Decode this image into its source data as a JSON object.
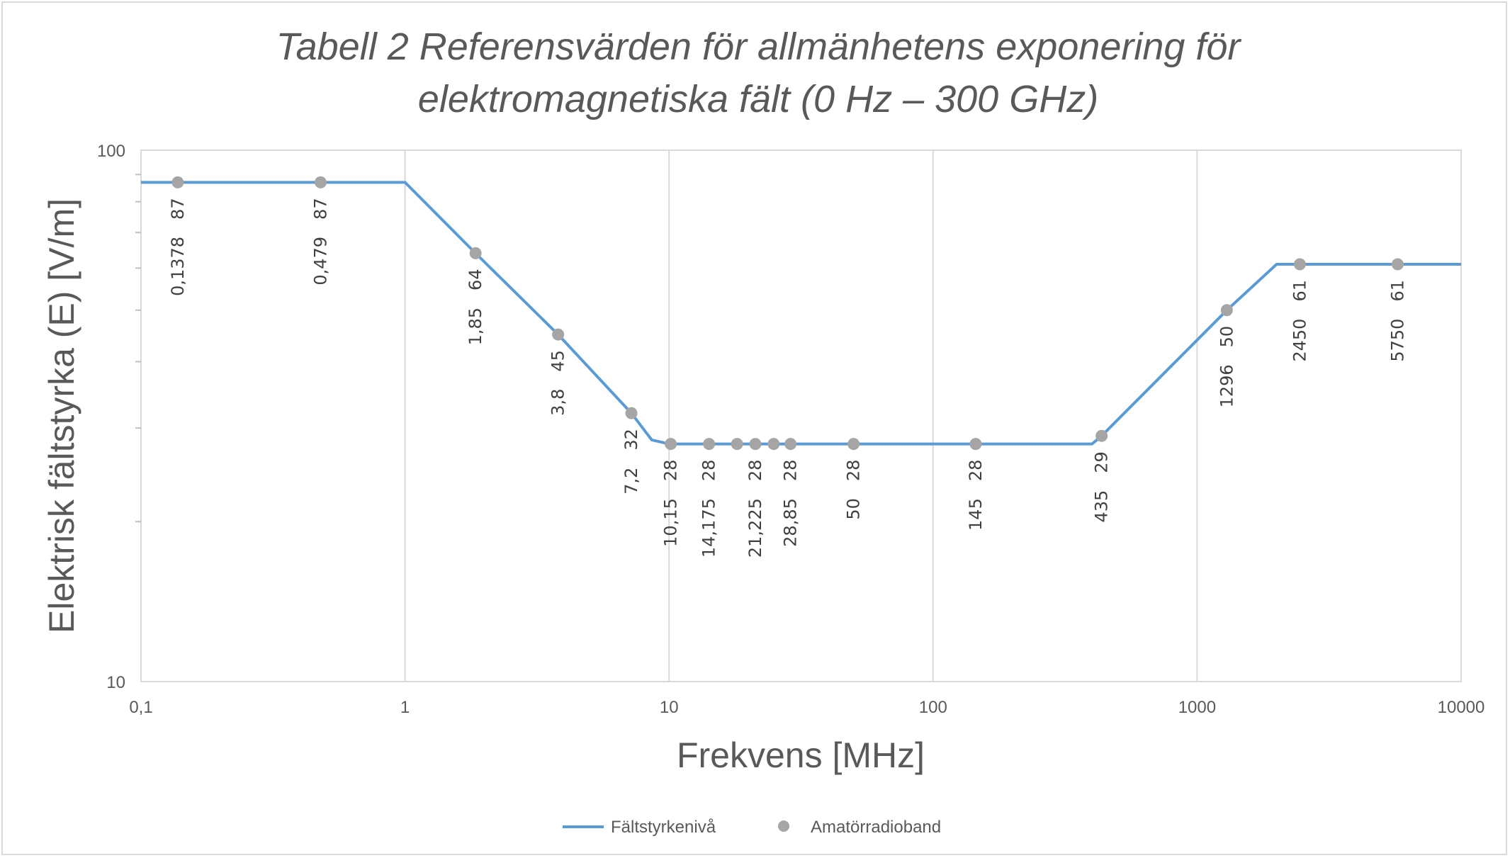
{
  "chart_data": {
    "type": "scatter",
    "title": "Tabell 2 Referensvärden för allmänhetens exponering för elektromagnetiska fält (0 Hz – 300 GHz)",
    "title_lines": [
      "Tabell 2 Referensvärden för allmänhetens exponering för",
      "elektromagnetiska fält (0 Hz – 300 GHz)"
    ],
    "xlabel": "Frekvens [MHz]",
    "ylabel": "Elektrisk fältstyrka (E)  [V/m]",
    "x_scale": "log",
    "y_scale": "log",
    "xlim": [
      0.1,
      10000
    ],
    "ylim": [
      10,
      100
    ],
    "x_tick_values": [
      0.1,
      1,
      10,
      100,
      1000,
      10000
    ],
    "x_tick_labels": [
      "0,1",
      "1",
      "10",
      "100",
      "1000",
      "10000"
    ],
    "y_tick_values": [
      10,
      100
    ],
    "y_tick_labels": [
      "10",
      "100"
    ],
    "grid": "vertical major gridlines",
    "legend_position": "bottom",
    "series": [
      {
        "name": "Fältstyrkenivå",
        "kind": "line",
        "color": "#5b9bd5",
        "x": [
          0.1,
          1,
          1.85,
          3.8,
          7.2,
          8.6,
          10,
          400,
          435,
          1296,
          2000,
          10000
        ],
        "y": [
          87,
          87,
          64,
          45,
          32,
          28.5,
          28,
          28,
          29,
          50,
          61,
          61
        ]
      },
      {
        "name": "Amatörradioband",
        "kind": "scatter",
        "color": "#a5a5a5",
        "points": [
          {
            "x": 0.1378,
            "y": 87,
            "x_label": "0,1378",
            "y_label": "87"
          },
          {
            "x": 0.479,
            "y": 87,
            "x_label": "0,479",
            "y_label": "87"
          },
          {
            "x": 1.85,
            "y": 64,
            "x_label": "1,85",
            "y_label": "64"
          },
          {
            "x": 3.8,
            "y": 45,
            "x_label": "3,8",
            "y_label": "45"
          },
          {
            "x": 7.2,
            "y": 32,
            "x_label": "7,2",
            "y_label": "32"
          },
          {
            "x": 10.15,
            "y": 28,
            "x_label": "10,15",
            "y_label": "28"
          },
          {
            "x": 14.175,
            "y": 28,
            "x_label": "14,175",
            "y_label": "28"
          },
          {
            "x": 18.1,
            "y": 28,
            "x_label": "",
            "y_label": ""
          },
          {
            "x": 21.225,
            "y": 28,
            "x_label": "21,225",
            "y_label": "28"
          },
          {
            "x": 24.9,
            "y": 28,
            "x_label": "",
            "y_label": ""
          },
          {
            "x": 28.85,
            "y": 28,
            "x_label": "28,85",
            "y_label": "28"
          },
          {
            "x": 50,
            "y": 28,
            "x_label": "50",
            "y_label": "28"
          },
          {
            "x": 145,
            "y": 28,
            "x_label": "145",
            "y_label": "28"
          },
          {
            "x": 435,
            "y": 29,
            "x_label": "435",
            "y_label": "29"
          },
          {
            "x": 1296,
            "y": 50,
            "x_label": "1296",
            "y_label": "50"
          },
          {
            "x": 2450,
            "y": 61,
            "x_label": "2450",
            "y_label": "61"
          },
          {
            "x": 5750,
            "y": 61,
            "x_label": "5750",
            "y_label": "61"
          }
        ]
      }
    ]
  }
}
